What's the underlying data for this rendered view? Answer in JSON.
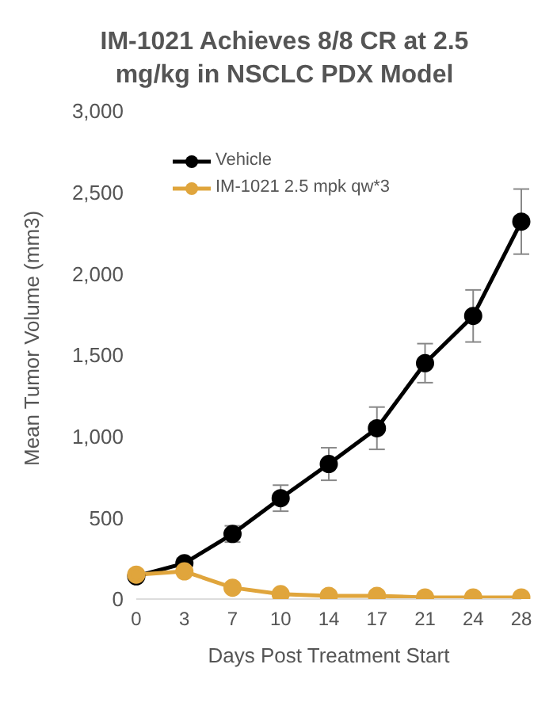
{
  "chart_data": {
    "type": "line",
    "title": "IM-1021 Achieves 8/8 CR at 2.5 mg/kg in NSCLC PDX Model",
    "xlabel": "Days Post Treatment Start",
    "ylabel": "Mean Tumor Volume (mm3)",
    "categories": [
      "0",
      "3",
      "7",
      "10",
      "14",
      "17",
      "21",
      "24",
      "28"
    ],
    "series": [
      {
        "name": "Vehicle",
        "color": "#000000",
        "values": [
          140,
          220,
          400,
          620,
          830,
          1050,
          1450,
          1740,
          2320
        ],
        "errors": [
          20,
          30,
          50,
          80,
          100,
          130,
          120,
          160,
          200
        ]
      },
      {
        "name": "IM-1021 2.5 mpk qw*3",
        "color": "#e0a53c",
        "values": [
          150,
          170,
          70,
          30,
          20,
          20,
          10,
          10,
          10
        ]
      }
    ],
    "ylim": [
      0,
      3000
    ],
    "yticks": [
      {
        "value": 0,
        "label": "0"
      },
      {
        "value": 500,
        "label": "500"
      },
      {
        "value": 1000,
        "label": "1,000"
      },
      {
        "value": 1500,
        "label": "1,500"
      },
      {
        "value": 2000,
        "label": "2,000"
      },
      {
        "value": 2500,
        "label": "2,500"
      },
      {
        "value": 3000,
        "label": "3,000"
      }
    ],
    "grid": false,
    "legend": "top left",
    "marker": "circle",
    "line_style": "solid"
  }
}
